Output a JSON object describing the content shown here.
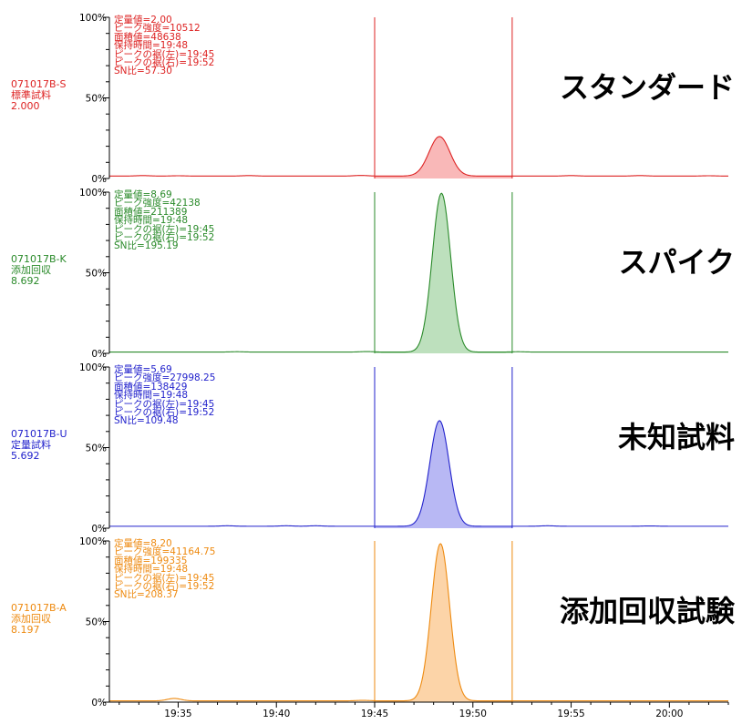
{
  "chart_data": {
    "type": "area",
    "x_axis": {
      "ticks": [
        "19:35",
        "19:40",
        "19:45",
        "19:50",
        "19:55",
        "20:00"
      ],
      "range": [
        "19:31.5",
        "20:03"
      ]
    },
    "y_ticks": [
      "100%",
      "50%",
      "0%"
    ],
    "y_range": [
      0,
      100
    ],
    "integration_window": [
      "19:45",
      "19:52"
    ],
    "panels": [
      {
        "color": "#dd2222",
        "fill": "#f9b8b8",
        "sample_id": "071017B-S",
        "sample_type": "標準試料",
        "value": "2.000",
        "label": "スタンダード",
        "stats": [
          "定量値=2.00",
          "ピーク強度=10512",
          "面積値=48638",
          "保持時間=19:48",
          "ピークの裾(左)=19:45",
          "ピークの裾(右)=19:52",
          "SN比=57.30"
        ],
        "peak_time": "19:48.3",
        "peak_height": 24.5,
        "peak_width_min": 1.25,
        "baseline": 1.5,
        "bumps": [
          [
            33.2,
            0.3
          ],
          [
            35.0,
            0.2
          ],
          [
            38.6,
            0.3
          ],
          [
            44.3,
            0.4
          ],
          [
            55.0,
            0.3
          ],
          [
            58.5,
            0.3
          ],
          [
            62.0,
            0.2
          ]
        ]
      },
      {
        "color": "#2a8a2a",
        "fill": "#bde0bd",
        "sample_id": "071017B-K",
        "sample_type": "添加回収",
        "value": "8.692",
        "label": "スパイク",
        "stats": [
          "定量値=8.69",
          "ピーク強度=42138",
          "面積値=211389",
          "保持時間=19:48",
          "ピークの裾(左)=19:45",
          "ピークの裾(右)=19:52",
          "SN比=195.19"
        ],
        "peak_time": "19:48.4",
        "peak_height": 98.5,
        "peak_width_min": 1.1,
        "baseline": 0.8,
        "bumps": [
          [
            38.0,
            0.2
          ],
          [
            44.6,
            0.3
          ],
          [
            52.3,
            0.2
          ]
        ]
      },
      {
        "color": "#2222cc",
        "fill": "#b8b8f4",
        "sample_id": "071017B-U",
        "sample_type": "定量試料",
        "value": "5.692",
        "label": "未知試料",
        "stats": [
          "定量値=5.69",
          "ピーク強度=27998.25",
          "面積値=138429",
          "保持時間=19:48",
          "ピークの裾(左)=19:45",
          "ピークの裾(右)=19:52",
          "SN比=109.48"
        ],
        "peak_time": "19:48.3",
        "peak_height": 65.5,
        "peak_width_min": 1.15,
        "baseline": 1.2,
        "bumps": [
          [
            37.5,
            0.3
          ],
          [
            40.5,
            0.3
          ],
          [
            42.0,
            0.3
          ],
          [
            53.8,
            0.3
          ],
          [
            59.0,
            0.2
          ]
        ]
      },
      {
        "color": "#ee8a10",
        "fill": "#fcd4a8",
        "sample_id": "071017B-A",
        "sample_type": "添加回収",
        "value": "8.197",
        "label": "添加回収試験",
        "stats": [
          "定量値=8.20",
          "ピーク強度=41164.75",
          "面積値=199335",
          "保持時間=19:48",
          "ピークの裾(左)=19:45",
          "ピークの裾(右)=19:52",
          "SN比=208.37"
        ],
        "peak_time": "19:48.35",
        "peak_height": 97.5,
        "peak_width_min": 1.1,
        "baseline": 0.8,
        "bumps": [
          [
            34.8,
            1.5
          ],
          [
            44.4,
            0.3
          ]
        ]
      }
    ]
  }
}
